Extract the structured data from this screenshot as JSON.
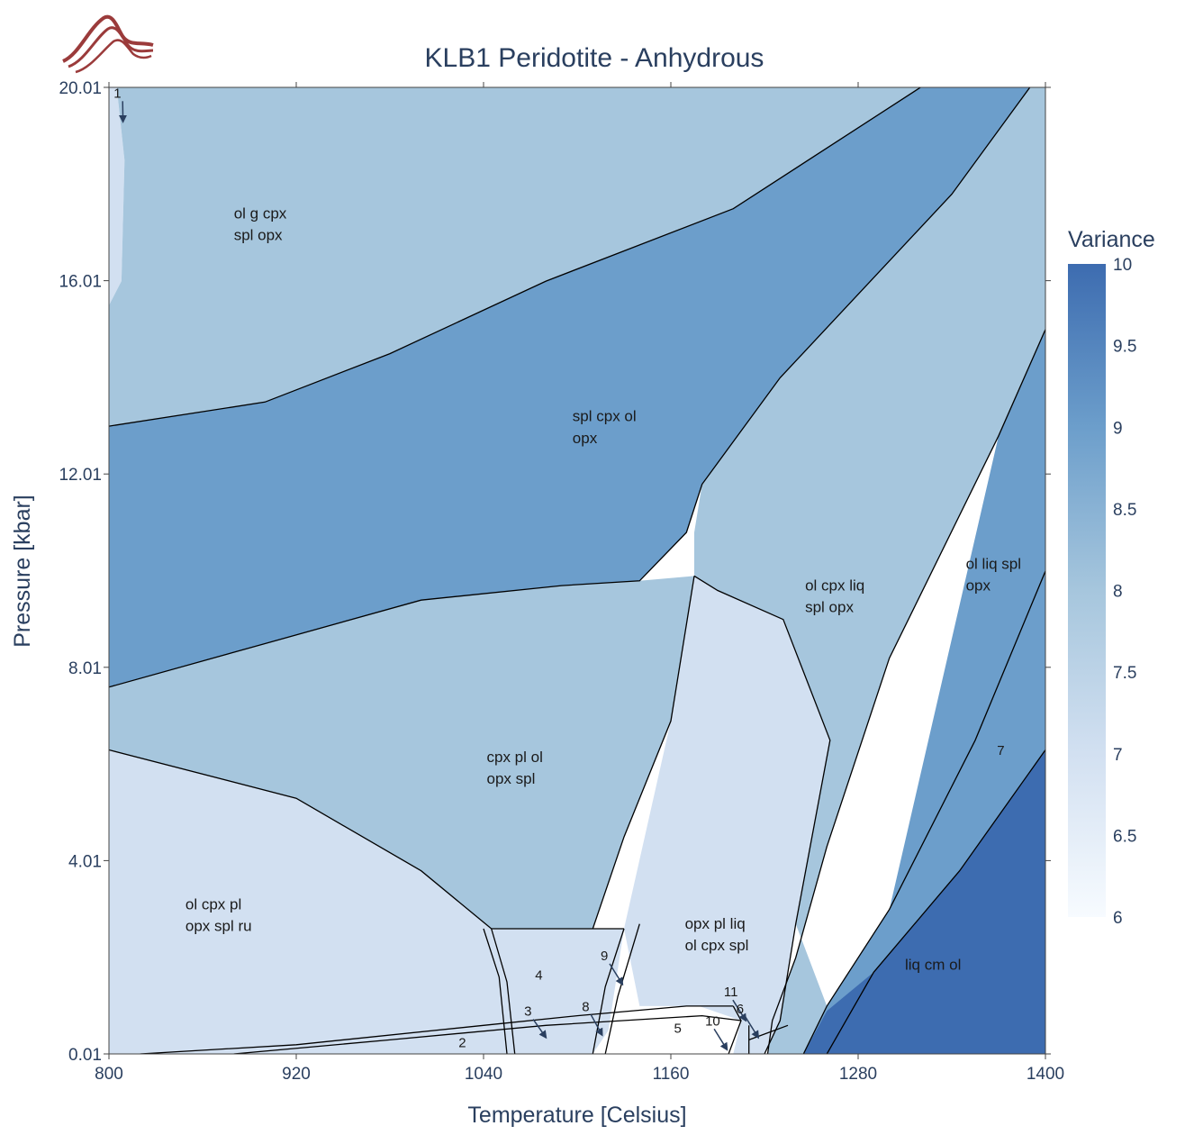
{
  "logo": {
    "icon": "mountain-wave-logo-icon",
    "color": "#9b3b3b"
  },
  "chart_data": {
    "type": "heatmap",
    "title": "KLB1 Peridotite - Anhydrous",
    "xlabel": "Temperature [Celsius]",
    "ylabel": "Pressure [kbar]",
    "xlim": [
      800,
      1400
    ],
    "ylim": [
      0.01,
      20.01
    ],
    "x_ticks": [
      "800",
      "920",
      "1040",
      "1160",
      "1280",
      "1400"
    ],
    "y_ticks": [
      "0.01",
      "4.01",
      "8.01",
      "12.01",
      "16.01",
      "20.01"
    ],
    "colorbar": {
      "title": "Variance",
      "range": [
        6,
        10
      ],
      "ticks": [
        "6",
        "6.5",
        "7",
        "7.5",
        "8",
        "8.5",
        "9",
        "9.5",
        "10"
      ],
      "colors": [
        "#f7fbff",
        "#d2e0f1",
        "#a6c6dd",
        "#6c9ecb",
        "#3d6cb0"
      ]
    },
    "fields": [
      {
        "id": "f1",
        "variance": 7,
        "points": [
          [
            800,
            20.01
          ],
          [
            805,
            20.01
          ],
          [
            810,
            18.5
          ],
          [
            808,
            16.0
          ],
          [
            800,
            15.5
          ]
        ]
      },
      {
        "id": "f-olgcpx",
        "variance": 8,
        "points": [
          [
            805,
            20.01
          ],
          [
            1320,
            20.01
          ],
          [
            1200,
            17.5
          ],
          [
            1080,
            16.0
          ],
          [
            980,
            14.5
          ],
          [
            900,
            13.5
          ],
          [
            800,
            13.0
          ],
          [
            800,
            15.5
          ],
          [
            808,
            16.0
          ],
          [
            810,
            18.5
          ]
        ]
      },
      {
        "id": "f-splcpxol",
        "variance": 9,
        "points": [
          [
            800,
            13.0
          ],
          [
            900,
            13.5
          ],
          [
            980,
            14.5
          ],
          [
            1080,
            16.0
          ],
          [
            1200,
            17.5
          ],
          [
            1320,
            20.01
          ],
          [
            1390,
            20.01
          ],
          [
            1340,
            17.8
          ],
          [
            1230,
            14.0
          ],
          [
            1180,
            11.8
          ],
          [
            1170,
            10.8
          ],
          [
            1140,
            9.8
          ],
          [
            1090,
            9.7
          ],
          [
            1000,
            9.4
          ],
          [
            900,
            8.5
          ],
          [
            800,
            7.6
          ]
        ]
      },
      {
        "id": "f-olcpxliq",
        "variance": 8,
        "points": [
          [
            1390,
            20.01
          ],
          [
            1400,
            20.01
          ],
          [
            1400,
            15.0
          ],
          [
            1370,
            12.8
          ],
          [
            1300,
            8.2
          ],
          [
            1260,
            4.3
          ],
          [
            1240,
            2.0
          ],
          [
            1225,
            0.7
          ],
          [
            1222,
            0.01
          ],
          [
            1245,
            0.01
          ],
          [
            1260,
            1.0
          ],
          [
            1240,
            2.7
          ],
          [
            1262,
            6.5
          ],
          [
            1232,
            9.0
          ],
          [
            1190,
            9.6
          ],
          [
            1175,
            9.9
          ],
          [
            1175,
            10.8
          ],
          [
            1180,
            11.8
          ],
          [
            1230,
            14.0
          ],
          [
            1340,
            17.8
          ]
        ]
      },
      {
        "id": "f-splcpxolopx-low",
        "variance": 8,
        "points": [
          [
            800,
            7.6
          ],
          [
            900,
            8.5
          ],
          [
            1000,
            9.4
          ],
          [
            1090,
            9.7
          ],
          [
            1140,
            9.8
          ],
          [
            1175,
            9.9
          ],
          [
            1160,
            6.9
          ],
          [
            1130,
            4.5
          ],
          [
            1110,
            2.6
          ],
          [
            1045,
            2.6
          ],
          [
            1000,
            3.8
          ],
          [
            920,
            5.3
          ],
          [
            800,
            6.3
          ]
        ]
      },
      {
        "id": "f-olcpxpl",
        "variance": 7,
        "points": [
          [
            800,
            6.3
          ],
          [
            920,
            5.3
          ],
          [
            1000,
            3.8
          ],
          [
            1045,
            2.6
          ],
          [
            1055,
            1.5
          ],
          [
            1060,
            0.01
          ],
          [
            800,
            0.01
          ]
        ]
      },
      {
        "id": "f-crescent",
        "variance": 7,
        "points": [
          [
            1175,
            9.9
          ],
          [
            1190,
            9.6
          ],
          [
            1232,
            9.0
          ],
          [
            1262,
            6.5
          ],
          [
            1240,
            2.7
          ],
          [
            1230,
            0.7
          ],
          [
            1220,
            0.01
          ],
          [
            1200,
            0.01
          ],
          [
            1205,
            0.7
          ],
          [
            1178,
            1.0
          ],
          [
            1140,
            1.0
          ],
          [
            1130,
            2.6
          ],
          [
            1160,
            6.9
          ]
        ]
      },
      {
        "id": "f4",
        "variance": 7,
        "points": [
          [
            1045,
            2.6
          ],
          [
            1110,
            2.6
          ],
          [
            1130,
            2.6
          ],
          [
            1120,
            0.5
          ],
          [
            1110,
            0.01
          ],
          [
            1060,
            0.01
          ],
          [
            1055,
            1.5
          ]
        ]
      },
      {
        "id": "f-olliqspl",
        "variance": 9,
        "points": [
          [
            1400,
            15.0
          ],
          [
            1400,
            10.0
          ],
          [
            1355,
            6.5
          ],
          [
            1300,
            3.0
          ],
          [
            1260,
            1.0
          ],
          [
            1245,
            0.01
          ],
          [
            1260,
            0.01
          ],
          [
            1300,
            3.0
          ],
          [
            1370,
            12.8
          ]
        ]
      },
      {
        "id": "f7",
        "variance": 9,
        "points": [
          [
            1400,
            10.0
          ],
          [
            1400,
            6.3
          ],
          [
            1345,
            3.8
          ],
          [
            1290,
            1.7
          ],
          [
            1260,
            0.01
          ],
          [
            1245,
            0.01
          ],
          [
            1260,
            1.0
          ],
          [
            1300,
            3.0
          ],
          [
            1355,
            6.5
          ]
        ]
      },
      {
        "id": "f-liqcmol",
        "variance": 10,
        "points": [
          [
            1400,
            6.3
          ],
          [
            1400,
            0.01
          ],
          [
            1245,
            0.01
          ],
          [
            1260,
            0.9
          ],
          [
            1290,
            1.7
          ],
          [
            1345,
            3.8
          ]
        ]
      }
    ],
    "boundaries": [
      [
        [
          800,
          13.0
        ],
        [
          900,
          13.5
        ],
        [
          980,
          14.5
        ],
        [
          1080,
          16.0
        ],
        [
          1200,
          17.5
        ],
        [
          1320,
          20.01
        ]
      ],
      [
        [
          1390,
          20.01
        ],
        [
          1340,
          17.8
        ],
        [
          1230,
          14.0
        ],
        [
          1180,
          11.8
        ],
        [
          1170,
          10.8
        ],
        [
          1140,
          9.8
        ],
        [
          1090,
          9.7
        ],
        [
          1000,
          9.4
        ],
        [
          900,
          8.5
        ],
        [
          800,
          7.6
        ]
      ],
      [
        [
          1400,
          15.0
        ],
        [
          1370,
          12.8
        ],
        [
          1300,
          8.2
        ],
        [
          1260,
          4.3
        ],
        [
          1240,
          2.0
        ],
        [
          1225,
          0.7
        ],
        [
          1222,
          0.01
        ]
      ],
      [
        [
          1400,
          10.0
        ],
        [
          1355,
          6.5
        ],
        [
          1300,
          3.0
        ],
        [
          1260,
          1.0
        ],
        [
          1245,
          0.01
        ]
      ],
      [
        [
          1400,
          6.3
        ],
        [
          1345,
          3.8
        ],
        [
          1290,
          1.7
        ],
        [
          1260,
          0.01
        ]
      ],
      [
        [
          800,
          6.3
        ],
        [
          920,
          5.3
        ],
        [
          1000,
          3.8
        ],
        [
          1045,
          2.6
        ],
        [
          1110,
          2.6
        ],
        [
          1130,
          2.6
        ]
      ],
      [
        [
          1175,
          9.9
        ],
        [
          1160,
          6.9
        ],
        [
          1130,
          4.5
        ],
        [
          1110,
          2.6
        ]
      ],
      [
        [
          1175,
          9.9
        ],
        [
          1190,
          9.6
        ],
        [
          1232,
          9.0
        ],
        [
          1262,
          6.5
        ],
        [
          1240,
          2.7
        ],
        [
          1230,
          0.7
        ],
        [
          1220,
          0.01
        ]
      ],
      [
        [
          1045,
          2.6
        ],
        [
          1055,
          1.5
        ],
        [
          1060,
          0.01
        ]
      ],
      [
        [
          1040,
          2.6
        ],
        [
          1050,
          1.6
        ],
        [
          1055,
          0.01
        ]
      ],
      [
        [
          1130,
          2.6
        ],
        [
          1118,
          1.4
        ],
        [
          1110,
          0.01
        ]
      ],
      [
        [
          1140,
          2.7
        ],
        [
          1126,
          1.2
        ],
        [
          1118,
          0.01
        ]
      ],
      [
        [
          820,
          0.01
        ],
        [
          920,
          0.2
        ],
        [
          1040,
          0.6
        ],
        [
          1100,
          0.8
        ],
        [
          1170,
          1.0
        ],
        [
          1200,
          1.0
        ]
      ],
      [
        [
          880,
          0.01
        ],
        [
          980,
          0.3
        ],
        [
          1080,
          0.6
        ],
        [
          1180,
          0.8
        ],
        [
          1205,
          0.7
        ]
      ],
      [
        [
          1200,
          1.0
        ],
        [
          1205,
          0.7
        ],
        [
          1197,
          0.01
        ]
      ],
      [
        [
          1210,
          0.6
        ],
        [
          1210,
          0.01
        ]
      ],
      [
        [
          1210,
          0.3
        ],
        [
          1235,
          0.6
        ]
      ]
    ],
    "annotations": [
      {
        "text": "ol g cpx",
        "x": 880,
        "y": 17.3
      },
      {
        "text": "spl opx",
        "x": 880,
        "y": 16.85
      },
      {
        "text": "spl cpx ol",
        "x": 1097,
        "y": 13.1
      },
      {
        "text": "opx",
        "x": 1097,
        "y": 12.65
      },
      {
        "text": "ol cpx liq",
        "x": 1246,
        "y": 9.6
      },
      {
        "text": "spl opx",
        "x": 1246,
        "y": 9.15
      },
      {
        "text": "ol liq spl",
        "x": 1349,
        "y": 10.05
      },
      {
        "text": "opx",
        "x": 1349,
        "y": 9.6
      },
      {
        "text": "cpx pl ol",
        "x": 1042,
        "y": 6.05
      },
      {
        "text": "opx spl",
        "x": 1042,
        "y": 5.6
      },
      {
        "text": "ol cpx pl",
        "x": 849,
        "y": 3.0
      },
      {
        "text": "opx spl ru",
        "x": 849,
        "y": 2.55
      },
      {
        "text": "opx pl liq",
        "x": 1169,
        "y": 2.6
      },
      {
        "text": "ol cpx spl",
        "x": 1169,
        "y": 2.15
      },
      {
        "text": "liq cm ol",
        "x": 1310,
        "y": 1.75
      },
      {
        "text": "7",
        "x": 1369,
        "y": 6.2
      },
      {
        "text": "4",
        "x": 1073,
        "y": 1.55
      },
      {
        "text": "2",
        "x": 1024,
        "y": 0.15
      },
      {
        "text": "5",
        "x": 1162,
        "y": 0.45
      },
      {
        "text": "1",
        "x": 803,
        "y": 19.8,
        "arrow": [
          809,
          19.3
        ]
      },
      {
        "text": "3",
        "x": 1066,
        "y": 0.8,
        "arrow": [
          1080,
          0.35
        ]
      },
      {
        "text": "8",
        "x": 1103,
        "y": 0.9,
        "arrow": [
          1116,
          0.4
        ]
      },
      {
        "text": "9",
        "x": 1115,
        "y": 1.95,
        "arrow": [
          1129,
          1.45
        ]
      },
      {
        "text": "10",
        "x": 1182,
        "y": 0.6,
        "arrow": [
          1196,
          0.1
        ]
      },
      {
        "text": "11",
        "x": 1194,
        "y": 1.2,
        "arrow": [
          1208,
          0.7
        ]
      },
      {
        "text": "6",
        "x": 1202,
        "y": 0.85,
        "arrow": [
          1216,
          0.35
        ]
      }
    ]
  }
}
